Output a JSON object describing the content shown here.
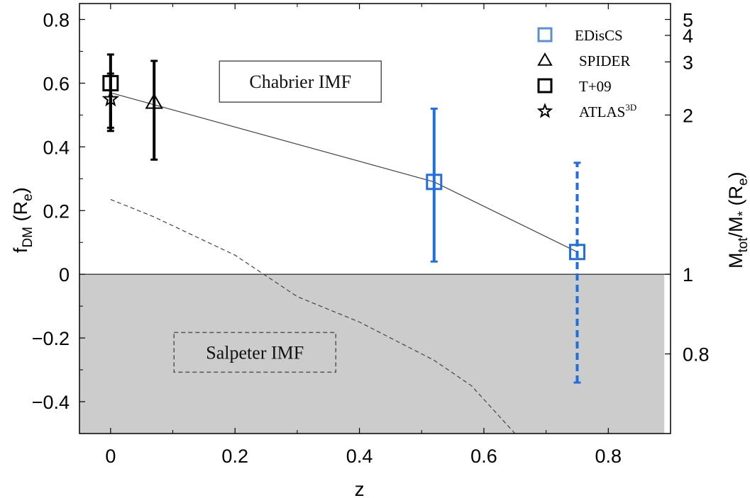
{
  "chart_data": {
    "type": "scatter",
    "xlabel": "z",
    "ylabel": "f",
    "ylabel_sub": "DM",
    "ylabel_suffix": "(R",
    "ylabel_suffix_sub": "e",
    "ylabel_close": ")",
    "y2label": "M",
    "y2label_sub1": "tot",
    "y2label_mid": "/M",
    "y2label_sub2": "*",
    "y2label_suffix": "(R",
    "y2label_suffix_sub": "e",
    "y2label_close": ")",
    "xlim": [
      -0.05,
      0.9
    ],
    "ylim": [
      -0.5,
      0.85
    ],
    "xticks": [
      0,
      0.2,
      0.4,
      0.6,
      0.8
    ],
    "xtick_labels": [
      "0",
      "0.2",
      "0.4",
      "0.6",
      "0.8"
    ],
    "yticks": [
      -0.4,
      -0.2,
      0,
      0.2,
      0.4,
      0.6,
      0.8
    ],
    "ytick_labels": [
      "−0.4",
      "−0.2",
      "0",
      "0.2",
      "0.4",
      "0.6",
      "0.8"
    ],
    "y2ticks": [
      {
        "fdm": -0.25,
        "label": "0.8"
      },
      {
        "fdm": 0,
        "label": "1"
      },
      {
        "fdm": 0.5,
        "label": "2"
      },
      {
        "fdm": 0.6667,
        "label": "3"
      },
      {
        "fdm": 0.75,
        "label": "4"
      },
      {
        "fdm": 0.8,
        "label": "5"
      }
    ],
    "shaded_region": {
      "ymin": -0.5,
      "ymax": 0,
      "xmax": 0.89,
      "color": "#cccccc"
    },
    "annotations": [
      {
        "text": "Chabrier IMF",
        "x": 0.305,
        "y": 0.605,
        "box": "solid"
      },
      {
        "text": "Salpeter IMF",
        "x": 0.232,
        "y": -0.245,
        "box": "dashed"
      }
    ],
    "series": [
      {
        "name": "EDisCS",
        "marker": "square",
        "color": "#1e6fe0",
        "points": [
          {
            "x": 0.52,
            "y": 0.29,
            "ylow": 0.04,
            "yhigh": 0.52,
            "style": "solid"
          },
          {
            "x": 0.75,
            "y": 0.07,
            "ylow": -0.34,
            "yhigh": 0.35,
            "style": "dashed"
          }
        ]
      },
      {
        "name": "SPIDER",
        "marker": "triangle",
        "color": "#000000",
        "points": [
          {
            "x": 0.07,
            "y": 0.54,
            "ylow": 0.36,
            "yhigh": 0.67
          }
        ]
      },
      {
        "name": "T+09",
        "marker": "square",
        "color": "#000000",
        "points": [
          {
            "x": 0.0,
            "y": 0.6,
            "ylow": 0.46,
            "yhigh": 0.69
          }
        ]
      },
      {
        "name": "ATLAS",
        "name_sup": "3D",
        "marker": "star",
        "color": "#000000",
        "points": [
          {
            "x": 0.0,
            "y": 0.55,
            "ylow": 0.45,
            "yhigh": 0.63
          }
        ]
      }
    ],
    "lines": [
      {
        "style": "solid",
        "color": "#444444",
        "points": [
          [
            0,
            0.57
          ],
          [
            0.52,
            0.29
          ],
          [
            0.75,
            0.07
          ]
        ]
      },
      {
        "style": "dashed",
        "color": "#444444",
        "points": [
          [
            0,
            0.235
          ],
          [
            0.07,
            0.18
          ],
          [
            0.2,
            0.06
          ],
          [
            0.3,
            -0.07
          ],
          [
            0.4,
            -0.15
          ],
          [
            0.52,
            -0.27
          ],
          [
            0.58,
            -0.35
          ],
          [
            0.65,
            -0.5
          ]
        ]
      }
    ],
    "legend_position": "top-right",
    "grid": false
  }
}
